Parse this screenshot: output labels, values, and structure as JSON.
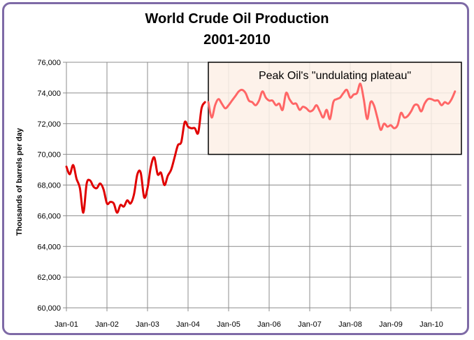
{
  "chart_data": {
    "type": "line",
    "title": "World Crude Oil Production",
    "subtitle": "2001-2010",
    "xlabel": "",
    "ylabel": "Thousands of barrels per day",
    "ylim": [
      60000,
      76000
    ],
    "yticks": [
      60000,
      62000,
      64000,
      66000,
      68000,
      70000,
      72000,
      74000,
      76000
    ],
    "ytick_labels": [
      "60,000",
      "62,000",
      "64,000",
      "66,000",
      "68,000",
      "70,000",
      "72,000",
      "74,000",
      "76,000"
    ],
    "xticks": [
      "Jan-01",
      "Jan-02",
      "Jan-03",
      "Jan-04",
      "Jan-05",
      "Jan-06",
      "Jan-07",
      "Jan-08",
      "Jan-09",
      "Jan-10"
    ],
    "x_start": "2001-01",
    "grid": true,
    "annotation": {
      "text": "Peak Oil's \"undulating plateau\"",
      "x_range": [
        "2004-07",
        "2010-12"
      ],
      "y_range": [
        70000,
        76000
      ]
    },
    "series": [
      {
        "color": "#e00000",
        "x_range": [
          "2001-01",
          "2004-07"
        ],
        "values": [
          69200,
          68700,
          69300,
          68400,
          67800,
          66200,
          68100,
          68300,
          67900,
          67800,
          68100,
          67700,
          66800,
          66900,
          66800,
          66200,
          66700,
          66600,
          67000,
          66800,
          67400,
          68700,
          68800,
          67200,
          67800,
          69200,
          69800,
          68700,
          68800,
          68000,
          68600,
          69000,
          69800,
          70600,
          70800,
          72100,
          71800,
          71700,
          71700,
          71400,
          73000,
          73400
        ]
      },
      {
        "color": "#ff6666",
        "x_range": [
          "2004-07",
          "2010-12"
        ],
        "values": [
          73400,
          72400,
          73200,
          73600,
          73300,
          73000,
          73200,
          73500,
          73800,
          74100,
          74200,
          74000,
          73500,
          73400,
          73200,
          73500,
          74100,
          73700,
          73500,
          73500,
          73200,
          73300,
          72900,
          74000,
          73600,
          73300,
          73300,
          72900,
          73100,
          73000,
          72800,
          72900,
          73200,
          72800,
          72400,
          72900,
          72300,
          73400,
          73600,
          73700,
          74000,
          74200,
          73700,
          73900,
          74000,
          74600,
          73600,
          72300,
          73400,
          73200,
          72400,
          71600,
          72000,
          71800,
          71900,
          71700,
          71900,
          72700,
          72400,
          72500,
          72800,
          73200,
          73200,
          72800,
          73300,
          73600,
          73600,
          73500,
          73500,
          73200,
          73400,
          73300,
          73600,
          74100
        ]
      }
    ]
  }
}
